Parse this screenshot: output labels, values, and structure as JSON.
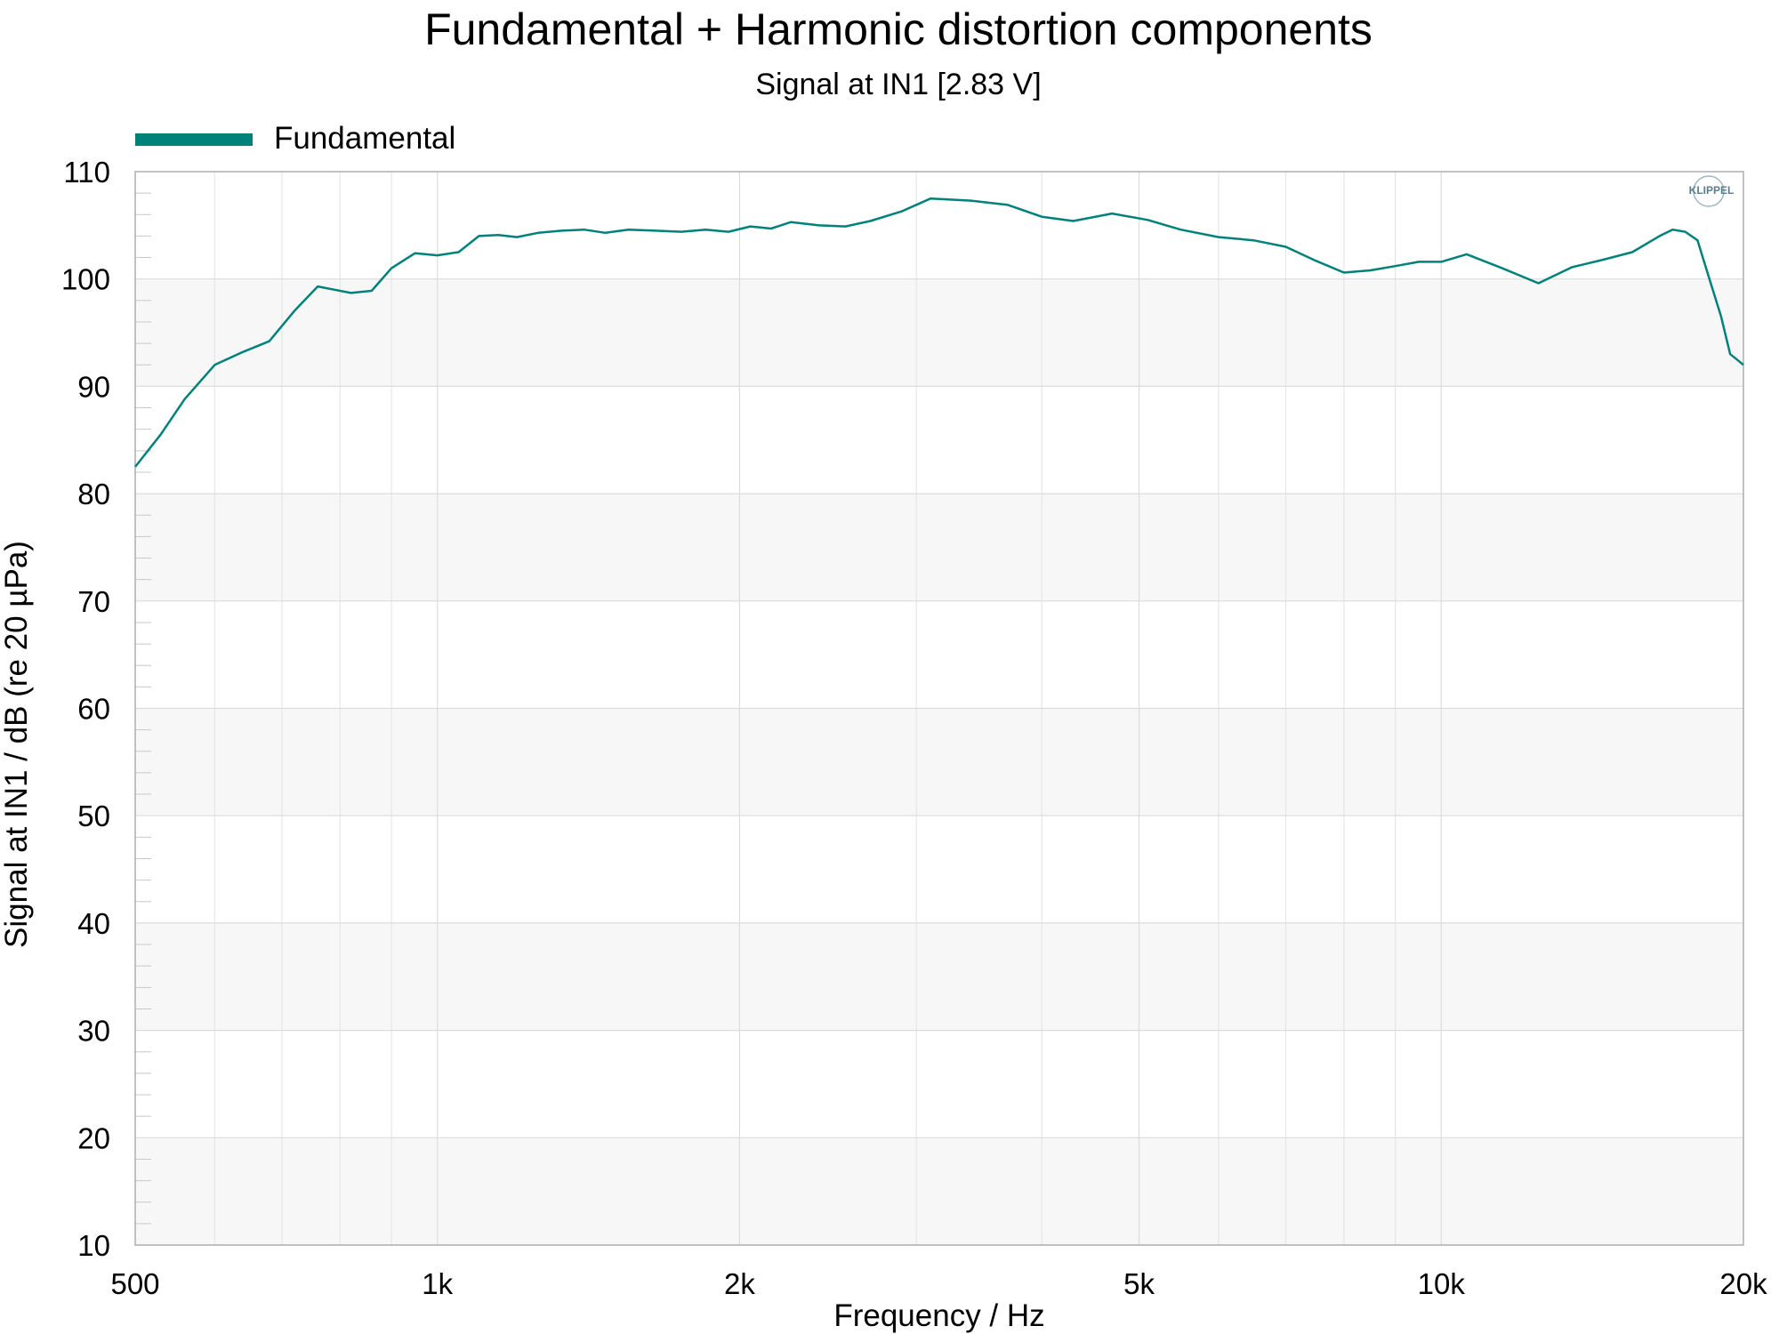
{
  "chart_data": {
    "type": "line",
    "title": "Fundamental + Harmonic distortion components",
    "subtitle": "Signal at IN1 [2.83 V]",
    "xlabel": "Frequency / Hz",
    "ylabel": "Signal at IN1 / dB (re 20 µPa)",
    "xscale": "log",
    "xlim": [
      500,
      20000
    ],
    "ylim": [
      10,
      110
    ],
    "x_ticks": [
      {
        "value": 500,
        "label": "500"
      },
      {
        "value": 1000,
        "label": "1k"
      },
      {
        "value": 2000,
        "label": "2k"
      },
      {
        "value": 5000,
        "label": "5k"
      },
      {
        "value": 10000,
        "label": "10k"
      },
      {
        "value": 20000,
        "label": "20k"
      }
    ],
    "y_ticks": [
      110,
      100,
      90,
      80,
      70,
      60,
      50,
      40,
      30,
      20,
      10
    ],
    "grid": true,
    "legend_position": "top-left",
    "logo": "KLIPPEL",
    "series": [
      {
        "name": "Fundamental",
        "color": "#00827a",
        "x": [
          500,
          530,
          560,
          600,
          640,
          680,
          720,
          760,
          790,
          820,
          860,
          900,
          950,
          1000,
          1050,
          1100,
          1150,
          1200,
          1260,
          1330,
          1400,
          1470,
          1550,
          1650,
          1750,
          1850,
          1950,
          2050,
          2150,
          2250,
          2400,
          2550,
          2700,
          2900,
          3100,
          3400,
          3700,
          4000,
          4300,
          4700,
          5100,
          5500,
          6000,
          6500,
          7000,
          7500,
          8000,
          8500,
          9000,
          9500,
          10000,
          10600,
          11500,
          12500,
          13500,
          14500,
          15500,
          16500,
          17000,
          17500,
          18000,
          18500,
          19000,
          19400,
          19700,
          20000
        ],
        "y": [
          82.5,
          85.5,
          88.8,
          92.0,
          93.2,
          94.2,
          97.0,
          99.3,
          99.0,
          98.7,
          98.9,
          101.0,
          102.4,
          102.2,
          102.5,
          104.0,
          104.1,
          103.9,
          104.3,
          104.5,
          104.6,
          104.3,
          104.6,
          104.5,
          104.4,
          104.6,
          104.4,
          104.9,
          104.7,
          105.3,
          105.0,
          104.9,
          105.4,
          106.3,
          107.5,
          107.3,
          106.9,
          105.8,
          105.4,
          106.1,
          105.5,
          104.6,
          103.9,
          103.6,
          103.0,
          101.7,
          100.6,
          100.8,
          101.2,
          101.6,
          101.6,
          102.3,
          101.0,
          99.6,
          101.1,
          101.8,
          102.5,
          104.0,
          104.6,
          104.4,
          103.6,
          100.0,
          96.5,
          93.0,
          92.5,
          92.0
        ]
      }
    ]
  }
}
